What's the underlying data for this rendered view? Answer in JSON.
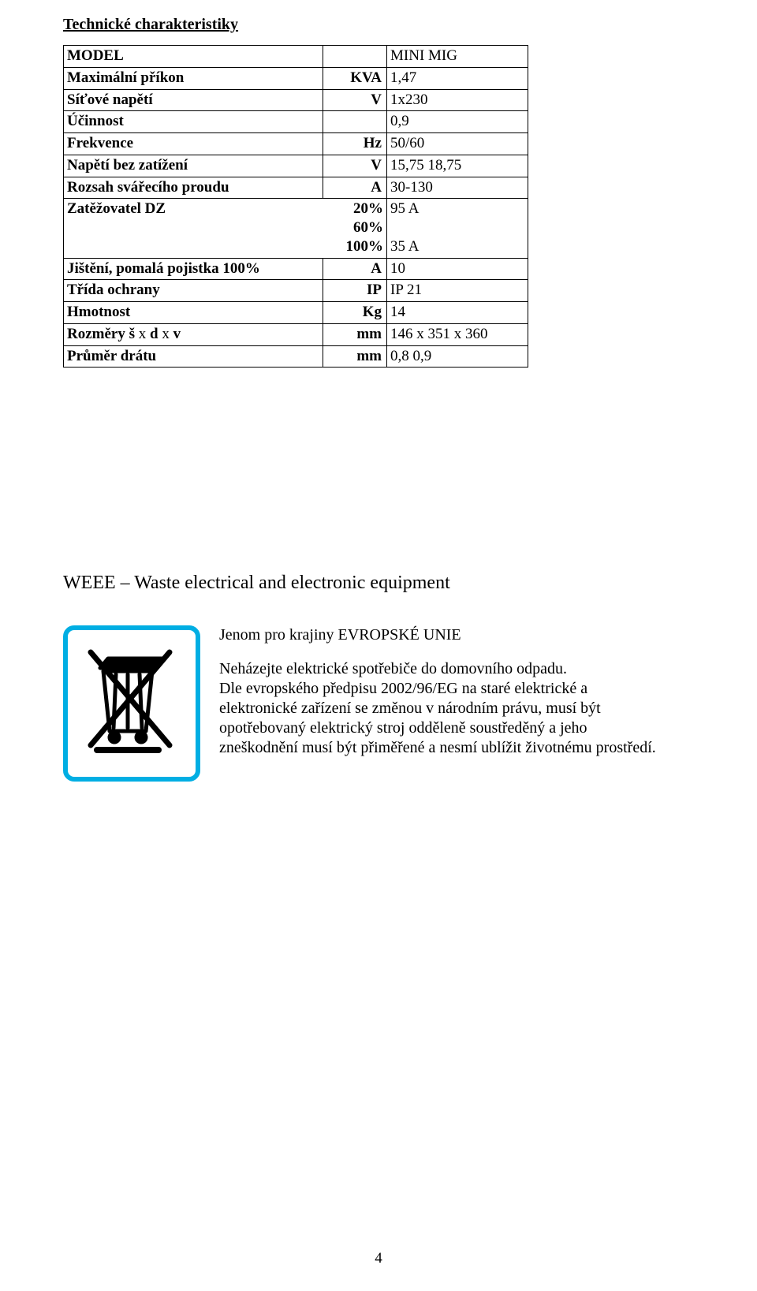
{
  "section_title": "Technické charakteristiky",
  "table": {
    "rows": [
      {
        "label": "MODEL",
        "label_bold": true,
        "unit": "",
        "value": "MINI MIG"
      },
      {
        "label": "Maximální příkon",
        "label_bold": true,
        "unit": "KVA",
        "value": "1,47"
      },
      {
        "label": "Síťové napětí",
        "label_bold": true,
        "unit": "V",
        "value": "1x230"
      },
      {
        "label": "Účinnost",
        "label_bold": true,
        "unit": "",
        "value": "0,9"
      },
      {
        "label": "Frekvence",
        "label_bold": true,
        "unit": "Hz",
        "value": "50/60"
      },
      {
        "label": "Napětí bez zatížení",
        "label_bold": true,
        "unit": "V",
        "value": "15,75  18,75"
      },
      {
        "label": "Rozsah svářecího proudu",
        "label_bold": true,
        "unit": "A",
        "value": "30-130"
      },
      {
        "label": "Zatěžovatel DZ                                  20%\n60%\n100%",
        "label_bold": true,
        "unit_merged": true,
        "value": "95 A\n\n35 A"
      },
      {
        "label": "Jištění, pomalá pojistka 100%",
        "label_bold": true,
        "unit": "A",
        "value": "10"
      },
      {
        "label": "Třída ochrany",
        "label_bold": true,
        "unit": "IP",
        "value": "IP 21"
      },
      {
        "label": "Hmotnost",
        "label_bold": true,
        "unit": "Kg",
        "value": "14"
      },
      {
        "label": "Rozměry š x d x v",
        "label_bold": true,
        "special_x": true,
        "unit": "mm",
        "value": "146 x 351 x 360"
      },
      {
        "label": "Průměr drátu",
        "label_bold": true,
        "unit": "mm",
        "value": "0,8  0,9"
      }
    ]
  },
  "weee": {
    "heading": "WEEE – Waste electrical and electronic equipment",
    "icon_border_color": "#00aee3",
    "para1": "Jenom pro krajiny EVROPSKÉ  UNIE",
    "para2": "Neházejte elektrické spotřebiče do domovního odpadu.\nDle evropského předpisu 2002/96/EG na staré elektrické a elektronické zařízení se změnou v národním právu, musí být opotřebovaný elektrický stroj odděleně soustředěný a jeho zneškodnění musí být přiměřené a nesmí ublížit životnému prostředí."
  },
  "page_number": "4"
}
